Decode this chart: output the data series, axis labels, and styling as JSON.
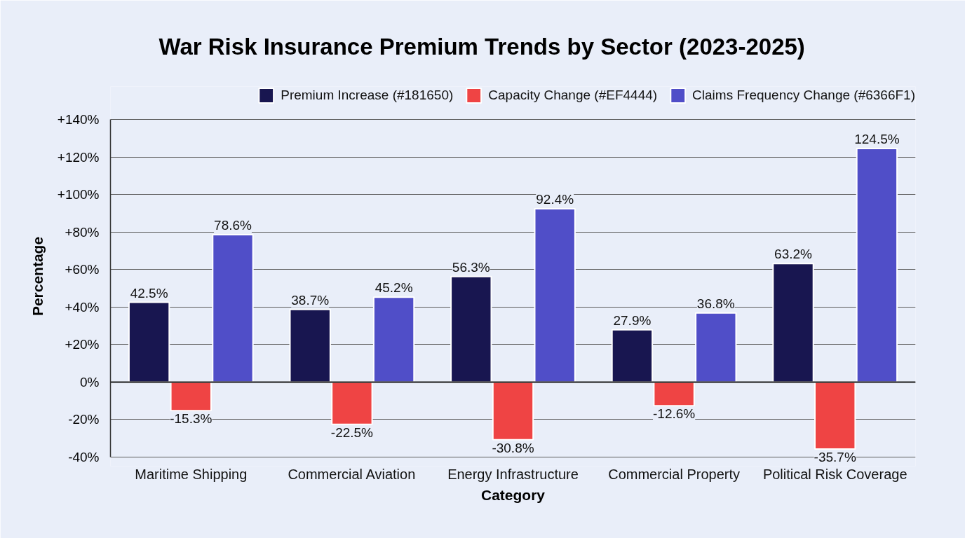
{
  "chart_data": {
    "type": "bar",
    "title": "War Risk Insurance Premium Trends by Sector (2023-2025)",
    "xlabel": "Category",
    "ylabel": "Percentage",
    "categories": [
      "Maritime Shipping",
      "Commercial Aviation",
      "Energy Infrastructure",
      "Commercial Property",
      "Political Risk Coverage"
    ],
    "series": [
      {
        "name": "Premium Increase (#181650)",
        "color": "#181650",
        "values": [
          42.5,
          38.7,
          56.3,
          27.9,
          63.2
        ],
        "value_labels": [
          "42.5%",
          "38.7%",
          "56.3%",
          "27.9%",
          "63.2%"
        ]
      },
      {
        "name": "Capacity Change (#EF4444)",
        "color": "#ef4444",
        "values": [
          -15.3,
          -22.5,
          -30.8,
          -12.6,
          -35.7
        ],
        "value_labels": [
          "-15.3%",
          "-22.5%",
          "-30.8%",
          "-12.6%",
          "-35.7%"
        ]
      },
      {
        "name": "Claims Frequency Change (#6366F1)",
        "color": "#504ec8",
        "values": [
          78.6,
          45.2,
          92.4,
          36.8,
          124.5
        ],
        "value_labels": [
          "78.6%",
          "45.2%",
          "92.4%",
          "36.8%",
          "124.5%"
        ]
      }
    ],
    "ylim": [
      -40,
      140
    ],
    "yticks": [
      {
        "value": -40,
        "label": "-40%"
      },
      {
        "value": -20,
        "label": "-20%"
      },
      {
        "value": 0,
        "label": "0%"
      },
      {
        "value": 20,
        "label": "+20%"
      },
      {
        "value": 40,
        "label": "+40%"
      },
      {
        "value": 60,
        "label": "+60%"
      },
      {
        "value": 80,
        "label": "+80%"
      },
      {
        "value": 100,
        "label": "+100%"
      },
      {
        "value": 120,
        "label": "+120%"
      },
      {
        "value": 140,
        "label": "+140%"
      }
    ],
    "ref_lines": [
      {
        "axis": "y",
        "value": 0,
        "color": "#1a1a1a"
      }
    ],
    "grid": "y",
    "legend": "top right"
  }
}
